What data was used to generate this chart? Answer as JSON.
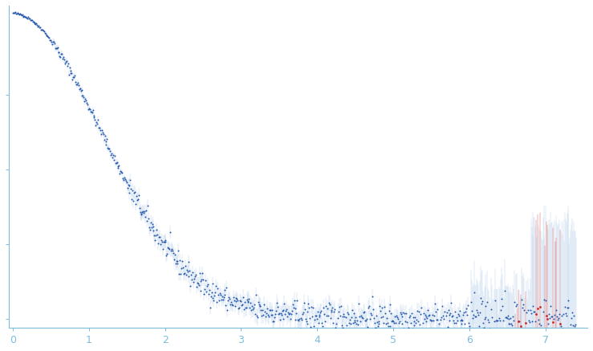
{
  "title": "",
  "xlabel": "",
  "ylabel": "",
  "xlim": [
    -0.05,
    7.55
  ],
  "ylim": [
    -0.03,
    1.05
  ],
  "x_ticks": [
    0,
    1,
    2,
    3,
    4,
    5,
    6,
    7
  ],
  "background_color": "#ffffff",
  "axis_color": "#7bbcdc",
  "data_color_blue": "#2255aa",
  "data_color_red": "#cc2222",
  "error_color": "#b0cce8",
  "dot_size": 2.0,
  "n_points": 750,
  "seed": 42
}
